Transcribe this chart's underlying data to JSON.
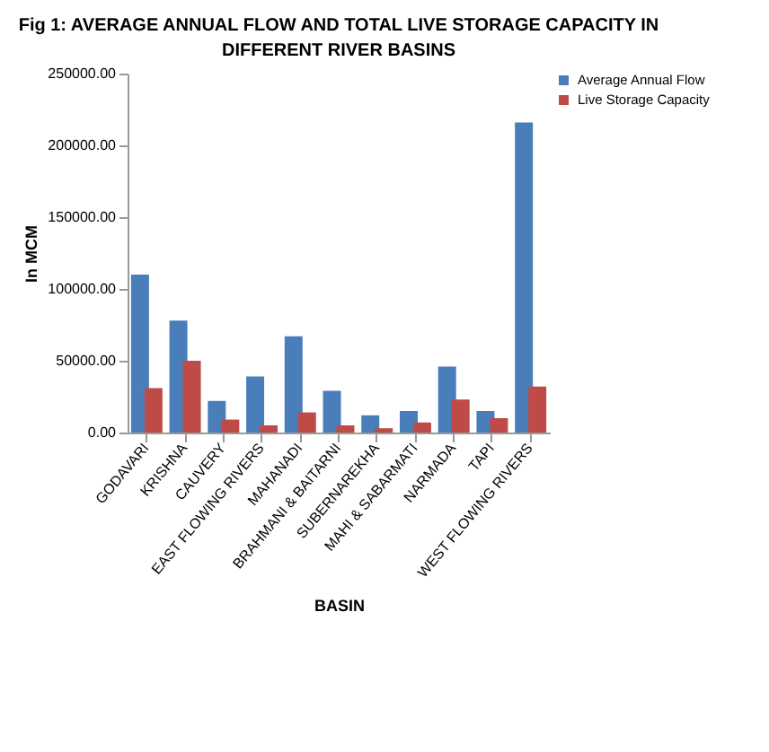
{
  "chart_data": {
    "type": "bar",
    "title": "Fig 1: AVERAGE ANNUAL FLOW AND TOTAL LIVE STORAGE CAPACITY IN DIFFERENT RIVER BASINS",
    "xlabel": "BASIN",
    "ylabel": "In MCM",
    "categories": [
      "GODAVARI",
      "KRISHNA",
      "CAUVERY",
      "EAST FLOWING RIVERS",
      "MAHANADI",
      "BRAHMANI & BAITARNI",
      "SUBERNAREKHA",
      "MAHI & SABARMATI",
      "NARMADA",
      "TAPI",
      "WEST FLOWING RIVERS"
    ],
    "series": [
      {
        "name": "Average Annual Flow",
        "color": "#4a7ebb",
        "values": [
          110000,
          78000,
          22000,
          39000,
          67000,
          29000,
          12000,
          15000,
          46000,
          15000,
          216000
        ]
      },
      {
        "name": "Live Storage Capacity",
        "color": "#be4b48",
        "values": [
          31000,
          50000,
          9000,
          5000,
          14000,
          5000,
          3000,
          7000,
          23000,
          10000,
          32000
        ]
      }
    ],
    "ylim": [
      0,
      250000
    ],
    "yticks": [
      {
        "value": 0,
        "label": "0.00"
      },
      {
        "value": 50000,
        "label": "50000.00"
      },
      {
        "value": 100000,
        "label": "100000.00"
      },
      {
        "value": 150000,
        "label": "150000.00"
      },
      {
        "value": 200000,
        "label": "200000.00"
      },
      {
        "value": 250000,
        "label": "250000.00"
      }
    ],
    "grid": false,
    "legend": "right"
  }
}
